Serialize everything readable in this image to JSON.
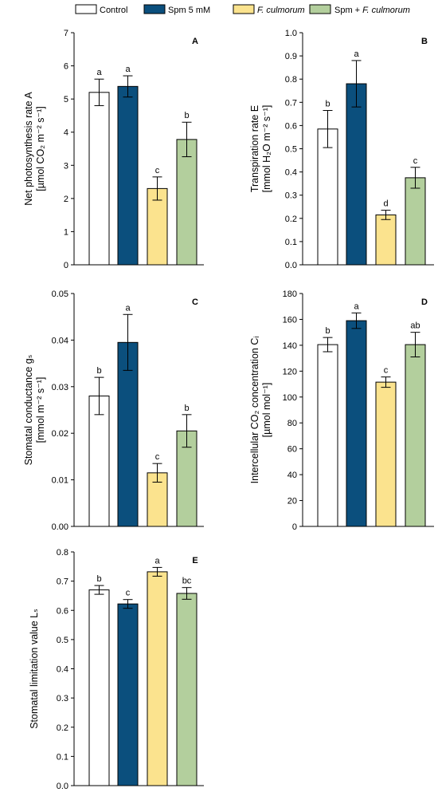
{
  "legend": {
    "items": [
      {
        "label": "Control",
        "italic": false,
        "color": "#ffffff"
      },
      {
        "label": "Spm 5 mM",
        "italic": false,
        "color": "#0b4f7d"
      },
      {
        "label": "F. culmorum",
        "italic": true,
        "color": "#fbe38e"
      },
      {
        "label": "Spm + ",
        "suffix": "F. culmorum",
        "italic_suffix": true,
        "color": "#b3cf9d"
      }
    ]
  },
  "chart_data": [
    {
      "type": "bar",
      "panel": "A",
      "ylabel_line1": "Net photosynthesis rate A",
      "ylabel_line2": "[µmol CO₂ m⁻² s⁻¹]",
      "ylim": [
        0,
        7
      ],
      "yticks": [
        "0",
        "1",
        "2",
        "3",
        "4",
        "5",
        "6",
        "7"
      ],
      "ytick_values": [
        0,
        1,
        2,
        3,
        4,
        5,
        6,
        7
      ],
      "series": [
        {
          "name": "Control",
          "value": 5.2,
          "err": 0.4,
          "sig": "a"
        },
        {
          "name": "Spm 5 mM",
          "value": 5.38,
          "err": 0.32,
          "sig": "a"
        },
        {
          "name": "F. culmorum",
          "value": 2.3,
          "err": 0.35,
          "sig": "c"
        },
        {
          "name": "Spm + F. culmorum",
          "value": 3.78,
          "err": 0.52,
          "sig": "b"
        }
      ]
    },
    {
      "type": "bar",
      "panel": "B",
      "ylabel_line1": "Transpiration rate E",
      "ylabel_line2": "[mmol H₂O m⁻² s⁻¹]",
      "ylim": [
        0,
        1.0
      ],
      "yticks": [
        "0.0",
        "0.1",
        "0.2",
        "0.3",
        "0.4",
        "0.5",
        "0.6",
        "0.7",
        "0.8",
        "0.9",
        "1.0"
      ],
      "ytick_values": [
        0,
        0.1,
        0.2,
        0.3,
        0.4,
        0.5,
        0.6,
        0.7,
        0.8,
        0.9,
        1.0
      ],
      "series": [
        {
          "name": "Control",
          "value": 0.585,
          "err": 0.08,
          "sig": "b"
        },
        {
          "name": "Spm 5 mM",
          "value": 0.78,
          "err": 0.1,
          "sig": "a"
        },
        {
          "name": "F. culmorum",
          "value": 0.215,
          "err": 0.02,
          "sig": "d"
        },
        {
          "name": "Spm + F. culmorum",
          "value": 0.375,
          "err": 0.045,
          "sig": "c"
        }
      ]
    },
    {
      "type": "bar",
      "panel": "C",
      "ylabel_line1": "Stomatal conductance gₛ",
      "ylabel_line2": "[mmol m⁻² s⁻¹]",
      "ylim": [
        0,
        0.05
      ],
      "yticks": [
        "0.00",
        "0.01",
        "0.02",
        "0.03",
        "0.04",
        "0.05"
      ],
      "ytick_values": [
        0,
        0.01,
        0.02,
        0.03,
        0.04,
        0.05
      ],
      "series": [
        {
          "name": "Control",
          "value": 0.028,
          "err": 0.004,
          "sig": "b"
        },
        {
          "name": "Spm 5 mM",
          "value": 0.0395,
          "err": 0.006,
          "sig": "a"
        },
        {
          "name": "F. culmorum",
          "value": 0.0115,
          "err": 0.002,
          "sig": "c"
        },
        {
          "name": "Spm + F. culmorum",
          "value": 0.0205,
          "err": 0.0035,
          "sig": "b"
        }
      ]
    },
    {
      "type": "bar",
      "panel": "D",
      "ylabel_line1": "Intercellular CO₂ concentration Cᵢ",
      "ylabel_line2": "[µmol mol⁻¹]",
      "ylim": [
        0,
        180
      ],
      "yticks": [
        "0",
        "20",
        "40",
        "60",
        "80",
        "100",
        "120",
        "140",
        "160",
        "180"
      ],
      "ytick_values": [
        0,
        20,
        40,
        60,
        80,
        100,
        120,
        140,
        160,
        180
      ],
      "series": [
        {
          "name": "Control",
          "value": 140.5,
          "err": 5.5,
          "sig": "b"
        },
        {
          "name": "Spm 5 mM",
          "value": 159,
          "err": 6,
          "sig": "a"
        },
        {
          "name": "F. culmorum",
          "value": 111.5,
          "err": 4,
          "sig": "c"
        },
        {
          "name": "Spm + F. culmorum",
          "value": 140.5,
          "err": 9.5,
          "sig": "ab"
        }
      ]
    },
    {
      "type": "bar",
      "panel": "E",
      "ylabel_line1": "Stomatal limitation value Lₛ",
      "ylabel_line2": "",
      "ylim": [
        0,
        0.8
      ],
      "yticks": [
        "0.0",
        "0.1",
        "0.2",
        "0.3",
        "0.4",
        "0.5",
        "0.6",
        "0.7",
        "0.8"
      ],
      "ytick_values": [
        0,
        0.1,
        0.2,
        0.3,
        0.4,
        0.5,
        0.6,
        0.7,
        0.8
      ],
      "series": [
        {
          "name": "Control",
          "value": 0.67,
          "err": 0.015,
          "sig": "b"
        },
        {
          "name": "Spm 5 mM",
          "value": 0.622,
          "err": 0.015,
          "sig": "c"
        },
        {
          "name": "F. culmorum",
          "value": 0.732,
          "err": 0.015,
          "sig": "a"
        },
        {
          "name": "Spm + F. culmorum",
          "value": 0.658,
          "err": 0.02,
          "sig": "bc"
        }
      ]
    }
  ]
}
